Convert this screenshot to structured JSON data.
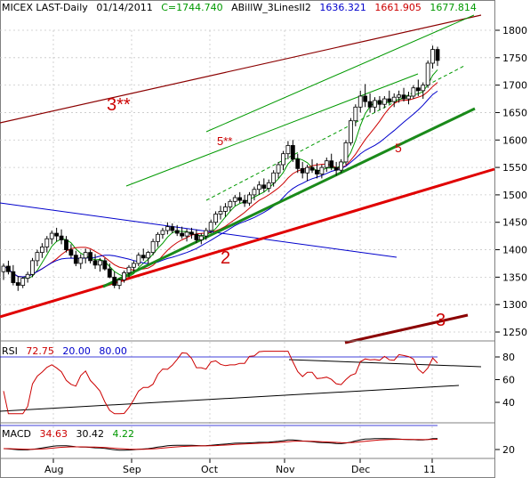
{
  "header": {
    "symbol": "MICEX LAST-Daily",
    "date": "01/14/2011",
    "close_text": "C=1744.740",
    "indicator_name": "ABillW_3LinesII2",
    "ind_values": [
      "1636.321",
      "1661.905",
      "1677.814"
    ]
  },
  "colors": {
    "blue": "#0000cc",
    "red": "#cc0000",
    "green": "#009900",
    "darkred": "#8b0000",
    "price": "#000000",
    "grid": "#c0c0c0"
  },
  "chart_data": {
    "type": "candlestick",
    "price_axis": {
      "min": 1200,
      "max": 1840,
      "ticks": [
        1250,
        1300,
        1350,
        1400,
        1450,
        1500,
        1550,
        1600,
        1650,
        1700,
        1750,
        1800
      ]
    },
    "x_labels": [
      "Aug",
      "Sep",
      "Oct",
      "Nov",
      "Dec",
      "11"
    ],
    "ohlc": [
      [
        1360,
        1375,
        1345,
        1370
      ],
      [
        1370,
        1380,
        1355,
        1360
      ],
      [
        1360,
        1372,
        1335,
        1340
      ],
      [
        1340,
        1352,
        1325,
        1335
      ],
      [
        1335,
        1350,
        1330,
        1348
      ],
      [
        1348,
        1360,
        1340,
        1355
      ],
      [
        1355,
        1385,
        1350,
        1380
      ],
      [
        1380,
        1400,
        1370,
        1395
      ],
      [
        1395,
        1412,
        1385,
        1405
      ],
      [
        1405,
        1425,
        1395,
        1420
      ],
      [
        1420,
        1435,
        1410,
        1430
      ],
      [
        1430,
        1440,
        1415,
        1425
      ],
      [
        1425,
        1437,
        1410,
        1418
      ],
      [
        1418,
        1425,
        1395,
        1400
      ],
      [
        1400,
        1410,
        1385,
        1390
      ],
      [
        1390,
        1398,
        1370,
        1375
      ],
      [
        1375,
        1392,
        1365,
        1385
      ],
      [
        1385,
        1402,
        1375,
        1395
      ],
      [
        1395,
        1400,
        1375,
        1380
      ],
      [
        1380,
        1392,
        1365,
        1372
      ],
      [
        1372,
        1385,
        1360,
        1380
      ],
      [
        1380,
        1385,
        1362,
        1365
      ],
      [
        1365,
        1375,
        1348,
        1350
      ],
      [
        1350,
        1360,
        1330,
        1335
      ],
      [
        1335,
        1348,
        1328,
        1345
      ],
      [
        1345,
        1362,
        1340,
        1358
      ],
      [
        1358,
        1372,
        1350,
        1368
      ],
      [
        1368,
        1380,
        1360,
        1375
      ],
      [
        1375,
        1395,
        1370,
        1390
      ],
      [
        1390,
        1402,
        1380,
        1385
      ],
      [
        1385,
        1398,
        1375,
        1395
      ],
      [
        1395,
        1420,
        1390,
        1415
      ],
      [
        1415,
        1432,
        1405,
        1428
      ],
      [
        1428,
        1440,
        1420,
        1435
      ],
      [
        1435,
        1450,
        1428,
        1442
      ],
      [
        1442,
        1448,
        1430,
        1435
      ],
      [
        1435,
        1445,
        1425,
        1430
      ],
      [
        1430,
        1442,
        1420,
        1425
      ],
      [
        1425,
        1438,
        1415,
        1432
      ],
      [
        1432,
        1440,
        1420,
        1428
      ],
      [
        1428,
        1437,
        1412,
        1418
      ],
      [
        1418,
        1430,
        1410,
        1425
      ],
      [
        1425,
        1440,
        1418,
        1435
      ],
      [
        1435,
        1455,
        1430,
        1450
      ],
      [
        1450,
        1470,
        1445,
        1465
      ],
      [
        1465,
        1480,
        1455,
        1470
      ],
      [
        1470,
        1485,
        1460,
        1478
      ],
      [
        1478,
        1492,
        1470,
        1488
      ],
      [
        1488,
        1500,
        1480,
        1495
      ],
      [
        1495,
        1505,
        1485,
        1490
      ],
      [
        1490,
        1500,
        1478,
        1485
      ],
      [
        1485,
        1505,
        1480,
        1500
      ],
      [
        1500,
        1515,
        1490,
        1510
      ],
      [
        1510,
        1525,
        1500,
        1518
      ],
      [
        1518,
        1530,
        1505,
        1512
      ],
      [
        1512,
        1528,
        1505,
        1522
      ],
      [
        1522,
        1545,
        1515,
        1540
      ],
      [
        1540,
        1560,
        1530,
        1555
      ],
      [
        1555,
        1580,
        1545,
        1575
      ],
      [
        1575,
        1598,
        1565,
        1590
      ],
      [
        1590,
        1600,
        1560,
        1565
      ],
      [
        1565,
        1575,
        1540,
        1548
      ],
      [
        1548,
        1560,
        1530,
        1540
      ],
      [
        1540,
        1555,
        1525,
        1550
      ],
      [
        1550,
        1565,
        1540,
        1545
      ],
      [
        1545,
        1558,
        1530,
        1538
      ],
      [
        1538,
        1555,
        1530,
        1550
      ],
      [
        1550,
        1568,
        1542,
        1562
      ],
      [
        1562,
        1575,
        1545,
        1550
      ],
      [
        1550,
        1560,
        1535,
        1545
      ],
      [
        1545,
        1565,
        1540,
        1560
      ],
      [
        1560,
        1600,
        1555,
        1595
      ],
      [
        1595,
        1640,
        1590,
        1635
      ],
      [
        1635,
        1665,
        1625,
        1660
      ],
      [
        1660,
        1690,
        1650,
        1680
      ],
      [
        1680,
        1702,
        1660,
        1670
      ],
      [
        1670,
        1685,
        1650,
        1660
      ],
      [
        1660,
        1678,
        1650,
        1672
      ],
      [
        1672,
        1680,
        1655,
        1665
      ],
      [
        1665,
        1680,
        1658,
        1675
      ],
      [
        1675,
        1690,
        1665,
        1670
      ],
      [
        1670,
        1685,
        1660,
        1678
      ],
      [
        1678,
        1690,
        1668,
        1682
      ],
      [
        1682,
        1695,
        1670,
        1675
      ],
      [
        1675,
        1688,
        1665,
        1680
      ],
      [
        1680,
        1700,
        1675,
        1695
      ],
      [
        1695,
        1710,
        1680,
        1690
      ],
      [
        1690,
        1705,
        1675,
        1700
      ],
      [
        1700,
        1745,
        1695,
        1740
      ],
      [
        1740,
        1772,
        1730,
        1765
      ],
      [
        1765,
        1770,
        1735,
        1745
      ]
    ],
    "annotations": [
      "3**",
      "5**",
      "5",
      "2",
      "3"
    ],
    "rsi": {
      "label": "RSI",
      "value": "72.75",
      "lower": "20.00",
      "upper": "80.00",
      "ticks": [
        40,
        60,
        80
      ]
    },
    "macd": {
      "label": "MACD",
      "v1": "34.63",
      "v2": "30.42",
      "v3": "4.22",
      "ticks": [
        20
      ]
    }
  }
}
